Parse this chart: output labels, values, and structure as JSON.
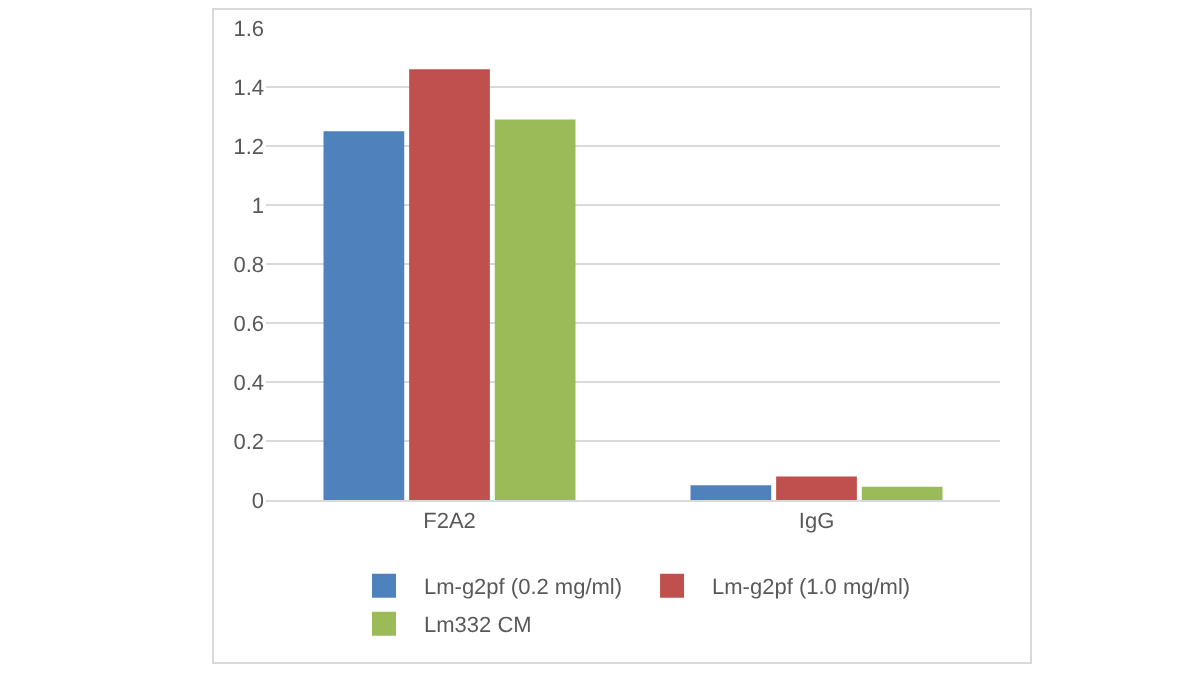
{
  "chart_data": {
    "type": "bar",
    "categories": [
      "F2A2",
      "IgG"
    ],
    "series": [
      {
        "name": "Lm-g2pf (0.2 mg/ml)",
        "color": "#4f81bd",
        "values": [
          1.25,
          0.05
        ]
      },
      {
        "name": "Lm-g2pf (1.0 mg/ml)",
        "color": "#c0504d",
        "values": [
          1.46,
          0.08
        ]
      },
      {
        "name": "Lm332 CM",
        "color": "#9bbb59",
        "values": [
          1.29,
          0.045
        ]
      }
    ],
    "ylim": [
      0,
      1.6
    ],
    "yticks": [
      0,
      0.2,
      0.4,
      0.6,
      0.8,
      1,
      1.2,
      1.4,
      1.6
    ],
    "grid": "y",
    "legend": "bottom"
  }
}
